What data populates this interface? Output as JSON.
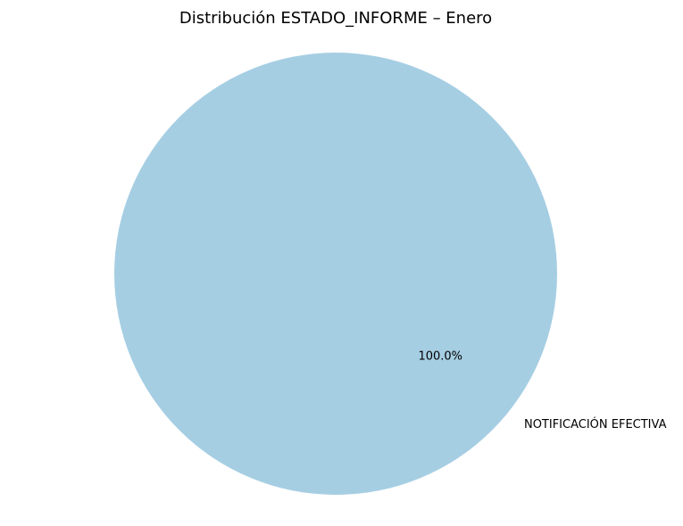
{
  "chart_data": {
    "type": "pie",
    "title": "Distribución ESTADO_INFORME – Enero",
    "slices": [
      {
        "label": "NOTIFICACIÓN EFECTIVA",
        "value": 100.0,
        "percent_label": "100.0%",
        "color": "#a6cee3"
      }
    ],
    "legend": "none"
  }
}
